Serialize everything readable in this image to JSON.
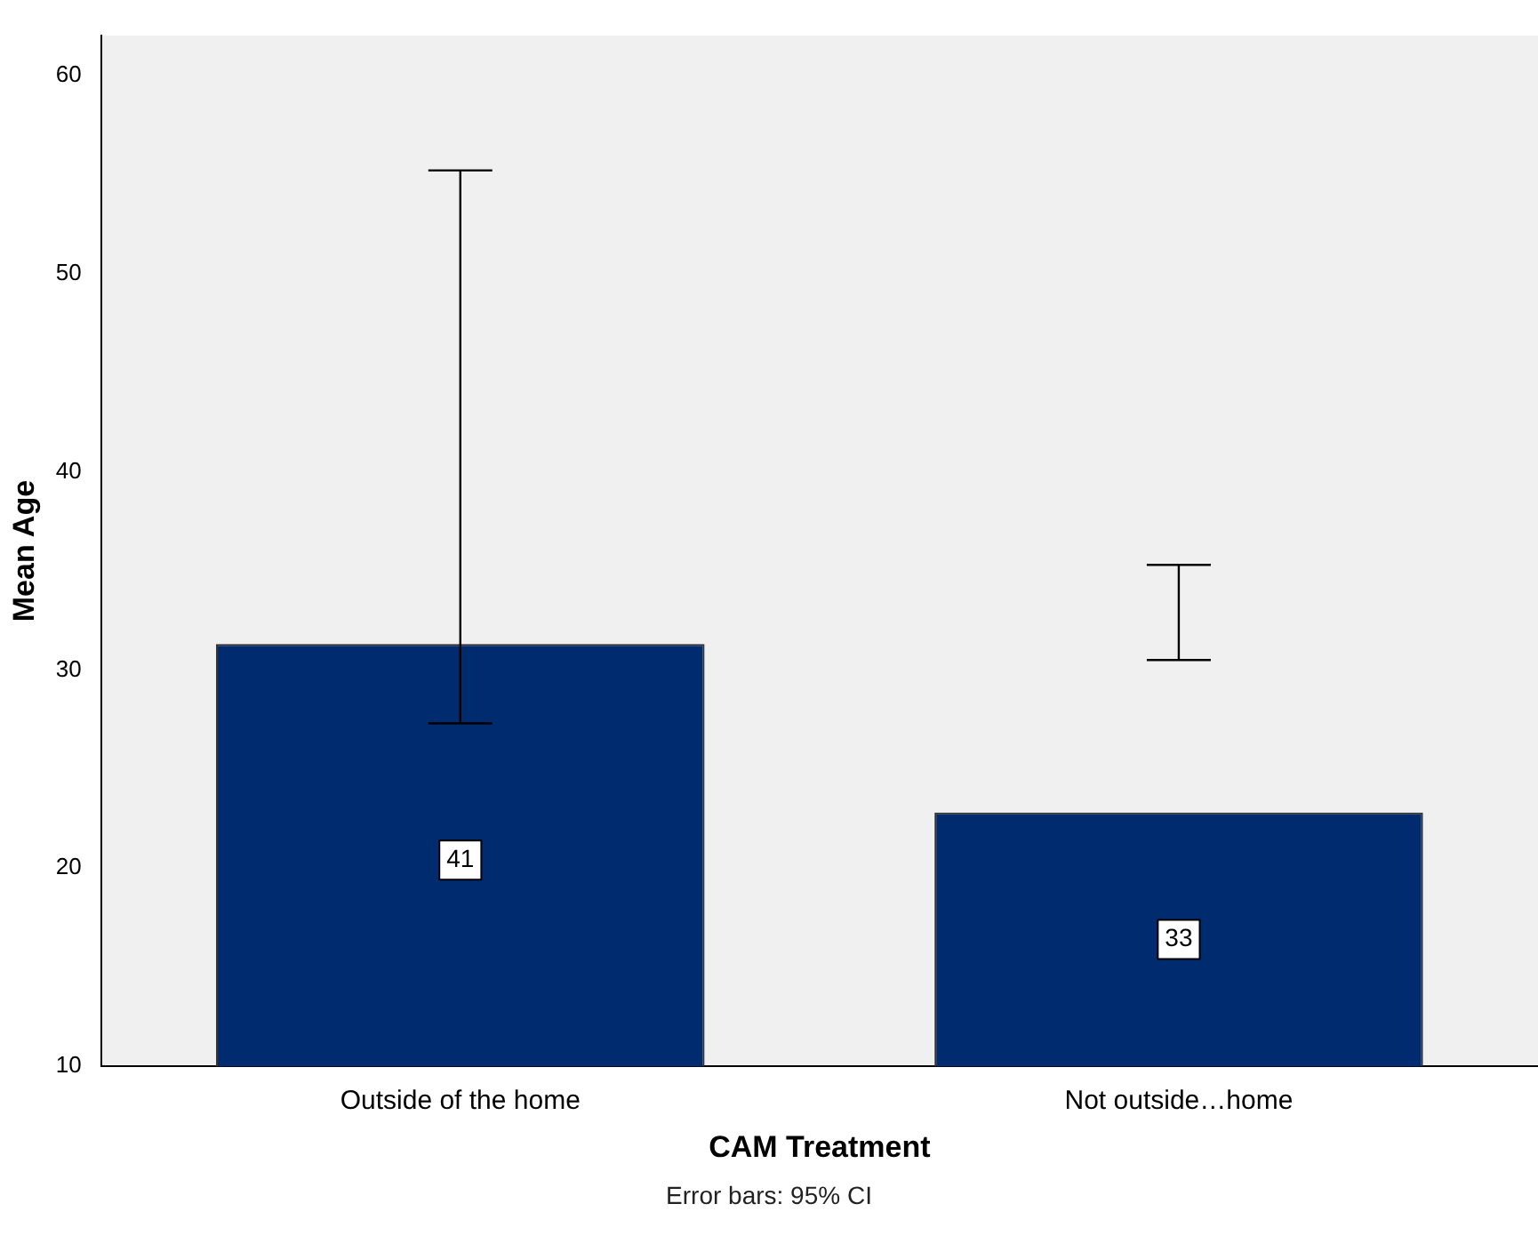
{
  "chart_data": {
    "type": "bar",
    "xlabel": "CAM Treatment",
    "ylabel": "Mean Age",
    "categories": [
      "Outside of the home",
      "Not outside…home"
    ],
    "values": [
      31.3,
      22.8
    ],
    "errors": [
      [
        27.3,
        55.2
      ],
      [
        30.5,
        35.3
      ]
    ],
    "color": "#002b6f",
    "ylim": [
      10,
      62
    ],
    "yticks": [
      10,
      20,
      30,
      40,
      50,
      60
    ],
    "annotations": [
      {
        "text": "41",
        "x": "Outside of the home",
        "y": 20.4
      },
      {
        "text": "33",
        "x": "Not outside…home",
        "y": 16.4
      },
      "Error bars: 95% CI"
    ]
  }
}
